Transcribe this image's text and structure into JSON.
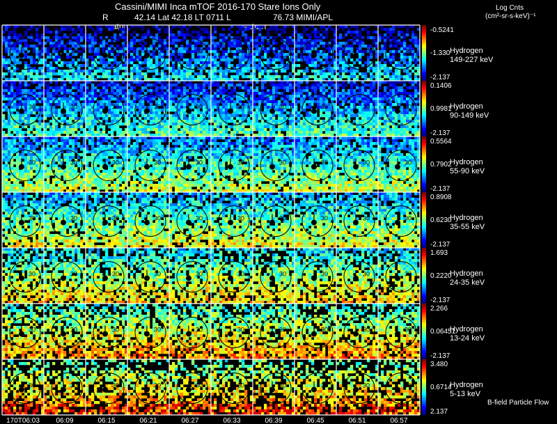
{
  "header": {
    "title": "Cassini/MIMI Inca mTOF  2016-170    Stare    Ions Only",
    "r_label": "R",
    "coords": "42.14 Lat 42.18 LT 0711 L",
    "l_value": "76.73  MIMI/APL",
    "saturn_label_1": "satur",
    "saturn_label_2": "saturn"
  },
  "colorbar_header": {
    "line1": "Log Cnts",
    "line2": "(cm²-sr-s-keV)⁻¹"
  },
  "footer": {
    "bfield_label": "B-field Particle Flow"
  },
  "chart_data": {
    "type": "heatmap",
    "time_labels": [
      "170T06:03",
      "06:09",
      "06:15",
      "06:21",
      "06:27",
      "06:33",
      "06:39",
      "06:45",
      "06:51",
      "06:57"
    ],
    "ring_label": "30",
    "panels": [
      {
        "species": "Hydrogen",
        "energy": "149-227 keV",
        "cmax": "-0.5241",
        "cmid": "-1.330",
        "cmin": "-2.137"
      },
      {
        "species": "Hydrogen",
        "energy": "90-149 keV",
        "cmax": "0.1406",
        "cmid": "0.9981",
        "cmin": "-2.137"
      },
      {
        "species": "Hydrogen",
        "energy": "55-90 keV",
        "cmax": "0.5564",
        "cmid": "0.7902",
        "cmin": "-2.137"
      },
      {
        "species": "Hydrogen",
        "energy": "35-55 keV",
        "cmax": "0.8908",
        "cmid": "0.6230",
        "cmin": "-2.137"
      },
      {
        "species": "Hydrogen",
        "energy": "24-35 keV",
        "cmax": "1.693",
        "cmid": "0.2220",
        "cmin": "-2.137"
      },
      {
        "species": "Hydrogen",
        "energy": "13-24 keV",
        "cmax": "2.266",
        "cmid": "0.06451",
        "cmin": "-2.137"
      },
      {
        "species": "Hydrogen",
        "energy": "5-13 keV",
        "cmax": "3.480",
        "cmid": "0.6714",
        "cmin": "2.137"
      }
    ]
  }
}
